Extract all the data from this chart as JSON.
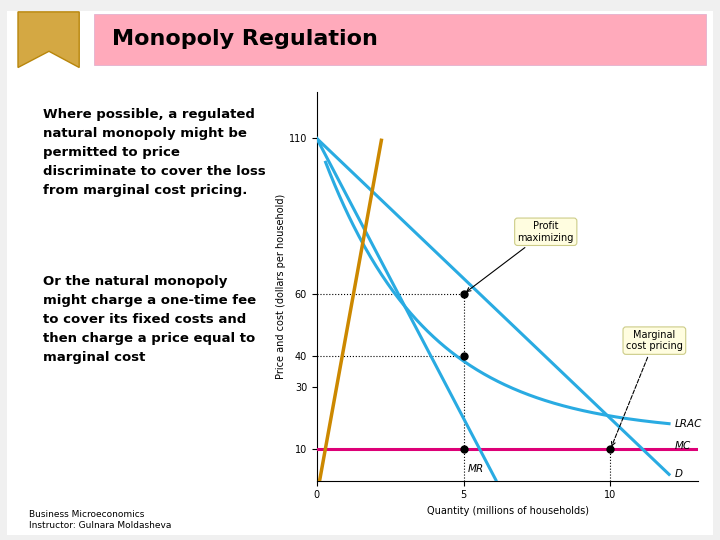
{
  "title": "Monopoly Regulation",
  "bg_color": "#f0f0f0",
  "title_bg": "#ffaacc",
  "text1": "Where possible, a regulated\nnatural monopoly might be\npermitted to price\ndiscriminate to cover the loss\nfrom marginal cost pricing.",
  "text2": "Or the natural monopoly\nmight charge a one-time fee\nto cover its fixed costs and\nthen charge a price equal to\nmarginal cost",
  "footnote": "Business Microeconomics\nInstructor: Gulnara Moldasheva",
  "ylabel": "Price and cost (dollars per household)",
  "xlabel": "Quantity (millions of households)",
  "yticks": [
    10,
    30,
    40,
    60,
    110
  ],
  "xtick_labels": [
    "0",
    "5",
    "10"
  ],
  "xticks": [
    0,
    5,
    10
  ],
  "ymin": 0,
  "ymax": 125,
  "xmin": 0,
  "xmax": 13,
  "mc_y": 10,
  "mc_color": "#dd0077",
  "curve_color": "#29abe2",
  "supply_color": "#cc8800",
  "dot_color": "#000000",
  "annotation_bg": "#fffde0",
  "annotation_edge": "#cccc88"
}
